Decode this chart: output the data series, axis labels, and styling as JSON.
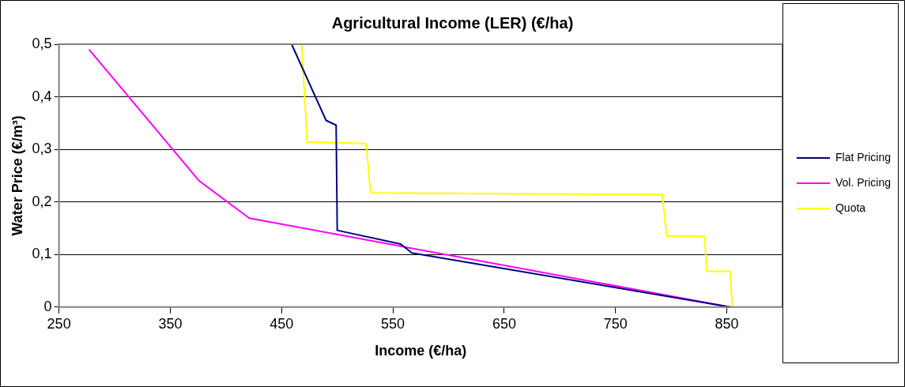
{
  "chart_data": {
    "type": "line",
    "title": "Agricultural Income (LER) (€/ha)",
    "xlabel": "Income (€/ha)",
    "ylabel": "Water Price (€/m³)",
    "xlim": [
      250,
      900
    ],
    "xticks": [
      250,
      350,
      450,
      550,
      650,
      750,
      850
    ],
    "ylim": [
      0,
      0.5
    ],
    "yticks": [
      {
        "value": 0,
        "label": "0"
      },
      {
        "value": 0.1,
        "label": "0,1"
      },
      {
        "value": 0.2,
        "label": "0,2"
      },
      {
        "value": 0.3,
        "label": "0,3"
      },
      {
        "value": 0.4,
        "label": "0,4"
      },
      {
        "value": 0.5,
        "label": "0,5"
      }
    ],
    "grid": "y",
    "legend": "right",
    "marker": "none",
    "line_style": "solid",
    "series": [
      {
        "name": "Flat Pricing",
        "color": "#000080",
        "x": [
          459,
          490,
          499,
          500,
          557,
          567,
          853
        ],
        "values": [
          0.5,
          0.355,
          0.346,
          0.146,
          0.12,
          0.103,
          0
        ]
      },
      {
        "name": "Vol. Pricing",
        "color": "#ff00ff",
        "x": [
          277,
          376,
          421,
          853
        ],
        "values": [
          0.49,
          0.24,
          0.169,
          0
        ]
      },
      {
        "name": "Quota",
        "color": "#ffff00",
        "x": [
          468,
          473,
          526,
          530,
          792,
          796,
          830,
          832,
          853,
          855
        ],
        "values": [
          0.5,
          0.314,
          0.311,
          0.217,
          0.214,
          0.135,
          0.135,
          0.068,
          0.068,
          0
        ]
      }
    ]
  }
}
